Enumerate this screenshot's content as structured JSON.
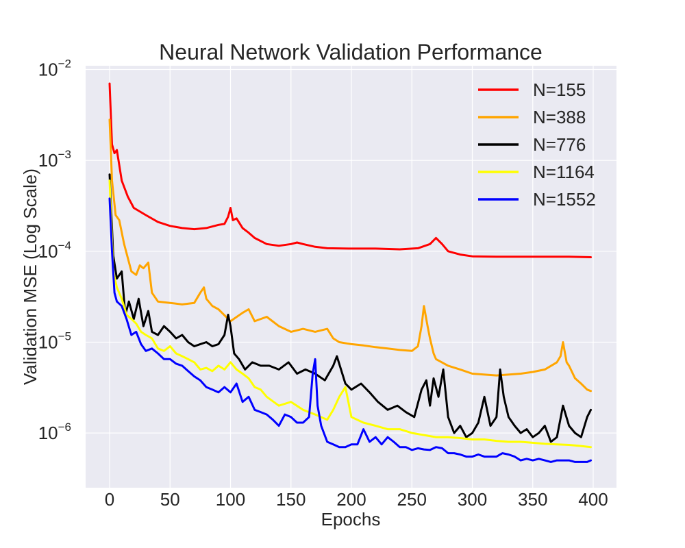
{
  "chart_data": {
    "type": "line",
    "title": "Neural Network Validation Performance",
    "xlabel": "Epochs",
    "ylabel": "Validation MSE (Log Scale)",
    "xlim": [
      -10,
      408
    ],
    "ylim": [
      2.5e-07,
      0.011
    ],
    "yscale": "log",
    "xticks": [
      "0",
      "50",
      "100",
      "150",
      "200",
      "250",
      "300",
      "350",
      "400"
    ],
    "yticks": [
      {
        "base": "10",
        "exp": "−2",
        "value": 0.01
      },
      {
        "base": "10",
        "exp": "−3",
        "value": 0.001
      },
      {
        "base": "10",
        "exp": "−4",
        "value": 0.0001
      },
      {
        "base": "10",
        "exp": "−5",
        "value": 1e-05
      },
      {
        "base": "10",
        "exp": "−6",
        "value": 1e-06
      }
    ],
    "grid": true,
    "legend_position": "top-right",
    "background": "#eaeaf2",
    "series": [
      {
        "name": "N=155",
        "color": "#ff0000",
        "x": [
          0,
          2,
          4,
          6,
          10,
          15,
          20,
          30,
          40,
          50,
          60,
          70,
          80,
          90,
          95,
          98,
          100,
          102,
          105,
          110,
          115,
          120,
          130,
          140,
          150,
          155,
          160,
          170,
          180,
          200,
          220,
          240,
          255,
          265,
          270,
          275,
          280,
          290,
          300,
          320,
          340,
          360,
          380,
          398
        ],
        "y": [
          0.007,
          0.0015,
          0.0012,
          0.0013,
          0.0006,
          0.0004,
          0.0003,
          0.00025,
          0.00021,
          0.00019,
          0.00018,
          0.000175,
          0.00018,
          0.000195,
          0.0002,
          0.00024,
          0.0003,
          0.00022,
          0.00023,
          0.00018,
          0.00016,
          0.00014,
          0.00012,
          0.000115,
          0.00012,
          0.000125,
          0.00012,
          0.000112,
          0.000108,
          0.000107,
          0.000107,
          0.000105,
          0.000108,
          0.00012,
          0.00014,
          0.00012,
          0.0001,
          9.2e-05,
          8.8e-05,
          8.7e-05,
          8.7e-05,
          8.7e-05,
          8.7e-05,
          8.6e-05
        ]
      },
      {
        "name": "N=388",
        "color": "#ffa500",
        "x": [
          0,
          2,
          5,
          8,
          12,
          18,
          22,
          25,
          28,
          32,
          35,
          40,
          50,
          60,
          70,
          75,
          78,
          80,
          85,
          90,
          100,
          110,
          115,
          120,
          130,
          140,
          150,
          160,
          170,
          180,
          185,
          190,
          200,
          210,
          220,
          230,
          240,
          250,
          255,
          258,
          260,
          263,
          265,
          268,
          270,
          280,
          290,
          300,
          320,
          340,
          350,
          360,
          370,
          373,
          375,
          378,
          380,
          385,
          390,
          395,
          398
        ],
        "y": [
          0.0028,
          0.0006,
          0.00025,
          0.00022,
          0.00012,
          6e-05,
          5.5e-05,
          7e-05,
          6.5e-05,
          7.5e-05,
          3.5e-05,
          2.8e-05,
          2.7e-05,
          2.6e-05,
          2.7e-05,
          3.5e-05,
          4e-05,
          3e-05,
          2.5e-05,
          2.3e-05,
          1.7e-05,
          2.1e-05,
          2.3e-05,
          1.7e-05,
          1.9e-05,
          1.5e-05,
          1.3e-05,
          1.4e-05,
          1.3e-05,
          1.4e-05,
          1.1e-05,
          1e-05,
          9.5e-06,
          9.2e-06,
          8.8e-06,
          8.5e-06,
          8.2e-06,
          8e-06,
          9e-06,
          1.5e-05,
          2.5e-05,
          1.5e-05,
          1.1e-05,
          7.5e-06,
          6.5e-06,
          5.5e-06,
          5e-06,
          4.5e-06,
          4.3e-06,
          4.5e-06,
          4.7e-06,
          5e-06,
          6e-06,
          7e-06,
          1e-05,
          6e-06,
          5.5e-06,
          4e-06,
          3.5e-06,
          3e-06,
          2.9e-06
        ]
      },
      {
        "name": "N=776",
        "color": "#000000",
        "x": [
          0,
          3,
          6,
          10,
          13,
          16,
          20,
          24,
          28,
          32,
          35,
          40,
          45,
          50,
          55,
          60,
          65,
          70,
          75,
          80,
          85,
          90,
          95,
          98,
          100,
          103,
          107,
          112,
          118,
          125,
          132,
          140,
          148,
          155,
          162,
          170,
          178,
          185,
          188,
          195,
          200,
          208,
          215,
          222,
          230,
          238,
          245,
          252,
          258,
          262,
          265,
          268,
          272,
          276,
          280,
          285,
          290,
          295,
          300,
          305,
          310,
          315,
          320,
          323,
          326,
          330,
          335,
          340,
          345,
          350,
          355,
          360,
          365,
          370,
          375,
          380,
          385,
          390,
          395,
          398
        ],
        "y": [
          0.0007,
          9e-05,
          5e-05,
          6e-05,
          2e-05,
          2.8e-05,
          1.8e-05,
          3e-05,
          1.5e-05,
          2.2e-05,
          1.3e-05,
          1.2e-05,
          1.5e-05,
          1.3e-05,
          1.1e-05,
          1.2e-05,
          1e-05,
          9e-06,
          9.5e-06,
          1e-05,
          9e-06,
          9.5e-06,
          1.2e-05,
          2e-05,
          1.5e-05,
          7.5e-06,
          6.5e-06,
          5e-06,
          6e-06,
          5.5e-06,
          5.5e-06,
          5e-06,
          6e-06,
          4.5e-06,
          5e-06,
          4.5e-06,
          3.8e-06,
          5.5e-06,
          7e-06,
          3.5e-06,
          3e-06,
          3.5e-06,
          2.8e-06,
          2.2e-06,
          1.8e-06,
          2e-06,
          1.7e-06,
          1.5e-06,
          3e-06,
          3.8e-06,
          2e-06,
          4e-06,
          2.5e-06,
          5e-06,
          1.5e-06,
          1e-06,
          1.2e-06,
          9e-07,
          1e-06,
          1.3e-06,
          2.5e-06,
          1.2e-06,
          1.5e-06,
          5e-06,
          2.5e-06,
          1.5e-06,
          1.2e-06,
          1e-06,
          1.1e-06,
          9e-07,
          1e-06,
          1.2e-06,
          8e-07,
          9e-07,
          2e-06,
          1.2e-06,
          1e-06,
          9e-07,
          1.5e-06,
          1.8e-06
        ]
      },
      {
        "name": "N=1164",
        "color": "#ffff00",
        "x": [
          0,
          3,
          6,
          10,
          14,
          18,
          22,
          26,
          30,
          35,
          40,
          45,
          50,
          55,
          60,
          65,
          70,
          75,
          80,
          85,
          90,
          95,
          100,
          105,
          110,
          115,
          120,
          125,
          130,
          140,
          150,
          160,
          170,
          180,
          185,
          190,
          195,
          200,
          210,
          220,
          230,
          240,
          250,
          260,
          270,
          280,
          290,
          300,
          310,
          320,
          330,
          340,
          350,
          360,
          370,
          380,
          390,
          398
        ],
        "y": [
          0.0006,
          6e-05,
          4e-05,
          3e-05,
          2e-05,
          1.8e-05,
          1.6e-05,
          1.3e-05,
          1.2e-05,
          1.1e-05,
          8.5e-06,
          8e-06,
          9e-06,
          7.5e-06,
          7e-06,
          6.5e-06,
          6e-06,
          5e-06,
          5.2e-06,
          4.8e-06,
          5.5e-06,
          5e-06,
          6e-06,
          5e-06,
          4.5e-06,
          4e-06,
          3.2e-06,
          3e-06,
          2.5e-06,
          2e-06,
          2.2e-06,
          1.8e-06,
          1.6e-06,
          1.4e-06,
          1.8e-06,
          2.5e-06,
          3.2e-06,
          1.5e-06,
          1.3e-06,
          1.2e-06,
          1.1e-06,
          1.1e-06,
          1e-06,
          9.5e-07,
          9e-07,
          9e-07,
          8.8e-07,
          8.5e-07,
          8.5e-07,
          8.2e-07,
          8e-07,
          8e-07,
          7.8e-07,
          7.6e-07,
          7.5e-07,
          7.4e-07,
          7.2e-07,
          7e-07
        ]
      },
      {
        "name": "N=1552",
        "color": "#0000ff",
        "x": [
          0,
          2,
          4,
          6,
          10,
          14,
          18,
          22,
          26,
          30,
          35,
          40,
          45,
          50,
          55,
          60,
          65,
          70,
          75,
          80,
          85,
          90,
          95,
          100,
          105,
          110,
          115,
          120,
          125,
          130,
          135,
          140,
          145,
          150,
          155,
          160,
          165,
          168,
          170,
          172,
          175,
          180,
          185,
          190,
          195,
          200,
          205,
          210,
          215,
          220,
          225,
          230,
          235,
          240,
          245,
          250,
          255,
          260,
          265,
          270,
          275,
          280,
          285,
          290,
          295,
          300,
          305,
          310,
          315,
          320,
          325,
          330,
          335,
          340,
          345,
          350,
          355,
          360,
          365,
          370,
          375,
          380,
          385,
          390,
          395,
          398
        ],
        "y": [
          0.00038,
          0.0001,
          3.5e-05,
          2.8e-05,
          2.5e-05,
          1.8e-05,
          1.2e-05,
          1.3e-05,
          9.5e-06,
          8e-06,
          8.5e-06,
          7.5e-06,
          6.5e-06,
          6.5e-06,
          5.8e-06,
          5.5e-06,
          4.8e-06,
          4.2e-06,
          3.8e-06,
          3.2e-06,
          3e-06,
          2.8e-06,
          3.2e-06,
          2.8e-06,
          3.5e-06,
          2.2e-06,
          2.5e-06,
          1.8e-06,
          1.7e-06,
          1.6e-06,
          1.4e-06,
          1.2e-06,
          1.6e-06,
          1.5e-06,
          1.3e-06,
          1.3e-06,
          1.5e-06,
          4.5e-06,
          6.5e-06,
          2e-06,
          1.2e-06,
          8e-07,
          7.5e-07,
          7e-07,
          7e-07,
          7.5e-07,
          7.5e-07,
          1.1e-06,
          8e-07,
          9e-07,
          7.5e-07,
          9e-07,
          8e-07,
          7e-07,
          7e-07,
          6.5e-07,
          6.8e-07,
          6.6e-07,
          6.5e-07,
          7e-07,
          6.8e-07,
          6e-07,
          6e-07,
          5.8e-07,
          5.5e-07,
          5.5e-07,
          5.8e-07,
          5.5e-07,
          5.5e-07,
          5.5e-07,
          6e-07,
          5.8e-07,
          5.5e-07,
          5e-07,
          5.2e-07,
          5e-07,
          5.2e-07,
          5e-07,
          4.8e-07,
          5e-07,
          5e-07,
          5e-07,
          4.8e-07,
          4.8e-07,
          4.8e-07,
          5e-07
        ]
      }
    ]
  }
}
